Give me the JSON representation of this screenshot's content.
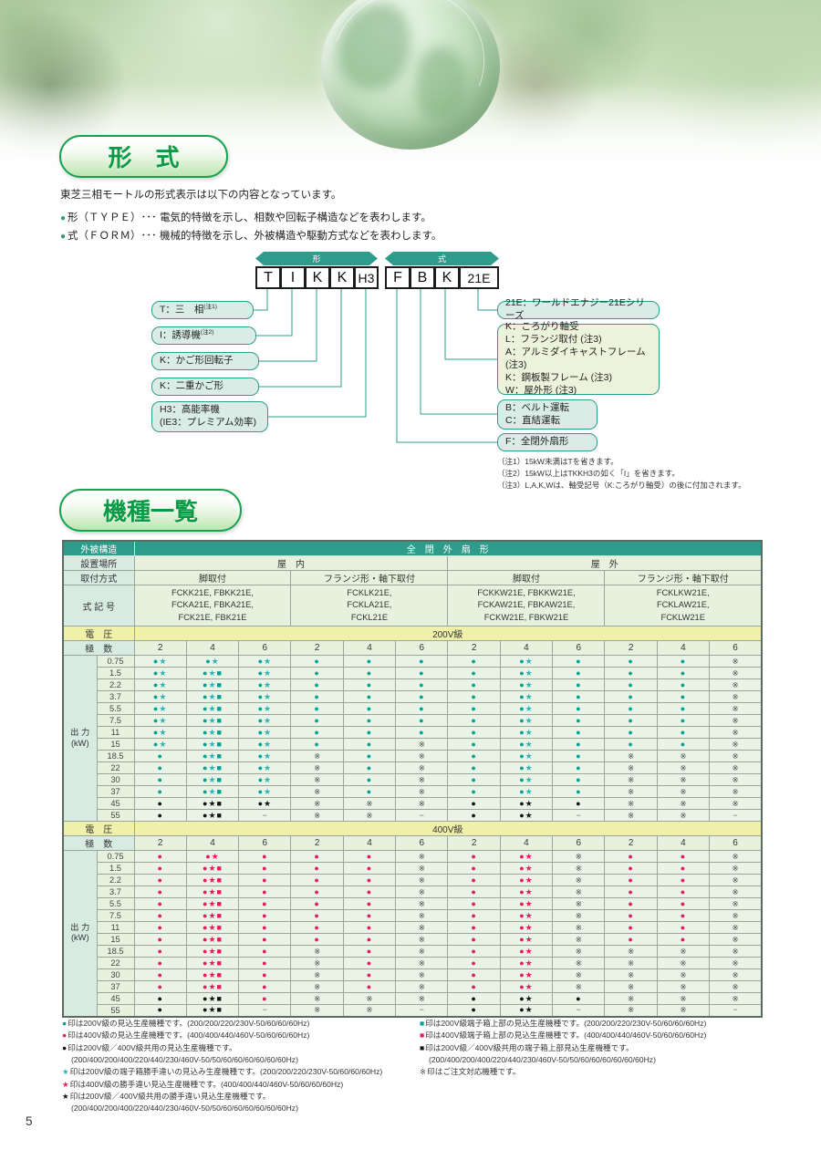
{
  "page": {
    "number": "5"
  },
  "intro": {
    "badge": "形　式",
    "lead": "東芝三相モートルの形式表示は以下の内容となっています。",
    "bullets": [
      "形（ＴＹＰＥ）･･･ 電気的特徴を示し、相数や回転子構造などを表わします。",
      "式（ＦＯＲＭ）･･･ 機械的特徴を示し、外被構造や駆動方式などを表わします。"
    ]
  },
  "section2_badge": "機種一覧",
  "diagram": {
    "arrows": [
      {
        "label": "形"
      },
      {
        "label": "式"
      }
    ],
    "type_boxes": [
      "T",
      "I",
      "K",
      "K",
      "H3"
    ],
    "form_boxes": [
      "F",
      "B",
      "K",
      "21E"
    ],
    "left_callouts": [
      {
        "text": "T：三　相",
        "note": "(注1)"
      },
      {
        "text": "I：誘導機",
        "note": "(注2)"
      },
      {
        "text": "K：かご形回転子",
        "note": ""
      },
      {
        "text": "K：二重かご形",
        "note": ""
      },
      {
        "lines": [
          "H3：高能率機",
          "(IE3：プレミアム効率)"
        ]
      }
    ],
    "right_callouts": [
      {
        "lines": [
          "21E：ワールドエナジー21Eシリーズ"
        ]
      },
      {
        "lines": [
          "K：ころがり軸受",
          "L：フランジ取付 (注3)",
          "A：アルミダイキャストフレーム (注3)",
          "K：鋼板製フレーム (注3)",
          "W：屋外形 (注3)"
        ]
      },
      {
        "lines": [
          "B：ベルト運転",
          "C：直結運転"
        ]
      },
      {
        "lines": [
          "F：全閉外扇形"
        ]
      }
    ],
    "notes": [
      "（注1）15kW未満はTを省きます。",
      "（注2）15kW以上はTKKH3の如く「I」を省きます。",
      "（注3）L,A,K,Wは、軸受記号（K:ころがり軸受）の後に付加されます。"
    ]
  },
  "table": {
    "enclosure_label": "外被構造",
    "enclosure_value": "全　閉　外　扇　形",
    "location_label": "設置場所",
    "locations": [
      "屋　内",
      "屋　外"
    ],
    "mount_label": "取付方式",
    "mounts": [
      "脚取付",
      "フランジ形・軸下取付",
      "脚取付",
      "フランジ形・軸下取付"
    ],
    "code_label": "式 記 号",
    "codes": [
      [
        "FCKK21E, FBKK21E,",
        "FCKA21E, FBKA21E,",
        "FCK21E, FBK21E"
      ],
      [
        "FCKLK21E,",
        "FCKLA21E,",
        "FCKL21E"
      ],
      [
        "FCKKW21E, FBKKW21E,",
        "FCKAW21E, FBKAW21E,",
        "FCKW21E, FBKW21E"
      ],
      [
        "FCKLKW21E,",
        "FCKLAW21E,",
        "FCKLW21E"
      ]
    ],
    "voltage_label": "電　圧",
    "poles_label": "極　数",
    "poles": [
      "2",
      "4",
      "6",
      "2",
      "4",
      "6",
      "2",
      "4",
      "6",
      "2",
      "4",
      "6"
    ],
    "output_label": [
      "出 力",
      "(kW)"
    ],
    "sections": [
      {
        "voltage": "200V級",
        "rows": [
          {
            "kw": "0.75",
            "cells": [
              "tds",
              "tds",
              "tds",
              "td",
              "td",
              "td",
              "td",
              "tds",
              "td",
              "td",
              "td",
              "x"
            ]
          },
          {
            "kw": "1.5",
            "cells": [
              "tds",
              "tdsq",
              "tds",
              "td",
              "td",
              "td",
              "td",
              "tds",
              "td",
              "td",
              "td",
              "x"
            ]
          },
          {
            "kw": "2.2",
            "cells": [
              "tds",
              "tdsq",
              "tds",
              "td",
              "td",
              "td",
              "td",
              "tds",
              "td",
              "td",
              "td",
              "x"
            ]
          },
          {
            "kw": "3.7",
            "cells": [
              "tds",
              "tdsq",
              "tds",
              "td",
              "td",
              "td",
              "td",
              "tds",
              "td",
              "td",
              "td",
              "x"
            ]
          },
          {
            "kw": "5.5",
            "cells": [
              "tds",
              "tdsq",
              "tds",
              "td",
              "td",
              "td",
              "td",
              "tds",
              "td",
              "td",
              "td",
              "x"
            ]
          },
          {
            "kw": "7.5",
            "cells": [
              "tds",
              "tdsq",
              "tds",
              "td",
              "td",
              "td",
              "td",
              "tds",
              "td",
              "td",
              "td",
              "x"
            ]
          },
          {
            "kw": "11",
            "cells": [
              "tds",
              "tdsq",
              "tds",
              "td",
              "td",
              "td",
              "td",
              "tds",
              "td",
              "td",
              "td",
              "x"
            ]
          },
          {
            "kw": "15",
            "cells": [
              "tds",
              "tdsq",
              "tds",
              "td",
              "td",
              "x",
              "td",
              "tds",
              "td",
              "td",
              "td",
              "x"
            ]
          },
          {
            "kw": "18.5",
            "cells": [
              "td",
              "tdsq",
              "tds",
              "x",
              "td",
              "x",
              "td",
              "tds",
              "td",
              "x",
              "x",
              "x"
            ]
          },
          {
            "kw": "22",
            "cells": [
              "td",
              "tdsq",
              "tds",
              "x",
              "td",
              "x",
              "td",
              "tds",
              "td",
              "x",
              "x",
              "x"
            ]
          },
          {
            "kw": "30",
            "cells": [
              "td",
              "tdsq",
              "tds",
              "x",
              "td",
              "x",
              "td",
              "tds",
              "td",
              "x",
              "x",
              "x"
            ]
          },
          {
            "kw": "37",
            "cells": [
              "td",
              "tdsq",
              "tds",
              "x",
              "td",
              "x",
              "td",
              "tds",
              "td",
              "x",
              "x",
              "x"
            ]
          },
          {
            "kw": "45",
            "cells": [
              "kd",
              "kdsq",
              "kds",
              "x",
              "x",
              "x",
              "kd",
              "kds",
              "kd",
              "x",
              "x",
              "x"
            ]
          },
          {
            "kw": "55",
            "cells": [
              "kd",
              "kdsq",
              "dash",
              "x",
              "x",
              "dash",
              "kd",
              "kds",
              "dash",
              "x",
              "x",
              "dash"
            ]
          }
        ]
      },
      {
        "voltage": "400V級",
        "rows": [
          {
            "kw": "0.75",
            "cells": [
              "pd",
              "pds",
              "pd",
              "pd",
              "pd",
              "x",
              "pd",
              "pds",
              "x",
              "pd",
              "pd",
              "x"
            ]
          },
          {
            "kw": "1.5",
            "cells": [
              "pd",
              "pdsq",
              "pd",
              "pd",
              "pd",
              "x",
              "pd",
              "pds",
              "x",
              "pd",
              "pd",
              "x"
            ]
          },
          {
            "kw": "2.2",
            "cells": [
              "pd",
              "pdsq",
              "pd",
              "pd",
              "pd",
              "x",
              "pd",
              "pds",
              "x",
              "pd",
              "pd",
              "x"
            ]
          },
          {
            "kw": "3.7",
            "cells": [
              "pd",
              "pdsq",
              "pd",
              "pd",
              "pd",
              "x",
              "pd",
              "pds",
              "x",
              "pd",
              "pd",
              "x"
            ]
          },
          {
            "kw": "5.5",
            "cells": [
              "pd",
              "pdsq",
              "pd",
              "pd",
              "pd",
              "x",
              "pd",
              "pds",
              "x",
              "pd",
              "pd",
              "x"
            ]
          },
          {
            "kw": "7.5",
            "cells": [
              "pd",
              "pdsq",
              "pd",
              "pd",
              "pd",
              "x",
              "pd",
              "pds",
              "x",
              "pd",
              "pd",
              "x"
            ]
          },
          {
            "kw": "11",
            "cells": [
              "pd",
              "pdsq",
              "pd",
              "pd",
              "pd",
              "x",
              "pd",
              "pds",
              "x",
              "pd",
              "pd",
              "x"
            ]
          },
          {
            "kw": "15",
            "cells": [
              "pd",
              "pdsq",
              "pd",
              "pd",
              "pd",
              "x",
              "pd",
              "pds",
              "x",
              "pd",
              "pd",
              "x"
            ]
          },
          {
            "kw": "18.5",
            "cells": [
              "pd",
              "pdsq",
              "pd",
              "x",
              "pd",
              "x",
              "pd",
              "pds",
              "x",
              "x",
              "x",
              "x"
            ]
          },
          {
            "kw": "22",
            "cells": [
              "pd",
              "pdsq",
              "pd",
              "x",
              "pd",
              "x",
              "pd",
              "pds",
              "x",
              "x",
              "x",
              "x"
            ]
          },
          {
            "kw": "30",
            "cells": [
              "pd",
              "pdsq",
              "pd",
              "x",
              "pd",
              "x",
              "pd",
              "pds",
              "x",
              "x",
              "x",
              "x"
            ]
          },
          {
            "kw": "37",
            "cells": [
              "pd",
              "pdsq",
              "pd",
              "x",
              "pd",
              "x",
              "pd",
              "pds",
              "x",
              "x",
              "x",
              "x"
            ]
          },
          {
            "kw": "45",
            "cells": [
              "kd",
              "kdsq",
              "pd",
              "x",
              "x",
              "x",
              "kd",
              "kds",
              "kd",
              "x",
              "x",
              "x"
            ]
          },
          {
            "kw": "55",
            "cells": [
              "kd",
              "kdsq",
              "dash",
              "x",
              "x",
              "dash",
              "kd",
              "kds",
              "dash",
              "x",
              "x",
              "dash"
            ]
          }
        ]
      }
    ]
  },
  "legend": {
    "left": [
      {
        "mark": "td",
        "text": "印は200V級の見込生産機種です。(200/200/220/230V-50/60/60/60Hz)"
      },
      {
        "mark": "pd",
        "text": "印は400V級の見込生産機種です。(400/400/440/460V-50/60/60/60Hz)"
      },
      {
        "mark": "kd",
        "text": "印は200V級／400V級共用の見込生産機種です。"
      },
      {
        "mark": null,
        "text": "(200/400/200/400/220/440/230/460V-50/50/60/60/60/60/60/60Hz)"
      },
      {
        "mark": "ts",
        "text": "印は200V級の端子箱勝手違いの見込み生産機種です。(200/200/220/230V-50/60/60/60Hz)"
      },
      {
        "mark": "ps",
        "text": "印は400V級の勝手違い見込生産機種です。(400/400/440/460V-50/60/60/60Hz)"
      },
      {
        "mark": "ks",
        "text": "印は200V級／400V級共用の勝手違い見込生産機種です。"
      },
      {
        "mark": null,
        "text": "(200/400/200/400/220/440/230/460V-50/50/60/60/60/60/60/60Hz)"
      }
    ],
    "right": [
      {
        "mark": "tq",
        "text": "印は200V級端子箱上部の見込生産機種です。(200/200/220/230V-50/60/60/60Hz)"
      },
      {
        "mark": "pq",
        "text": "印は400V級端子箱上部の見込生産機種です。(400/400/440/460V-50/60/60/60Hz)"
      },
      {
        "mark": "kq",
        "text": "印は200V級／400V級共用の端子箱上部見込生産機種です。"
      },
      {
        "mark": null,
        "text": "(200/400/200/400/220/440/230/460V-50/50/60/60/60/60/60/60Hz)"
      },
      {
        "mark": "x",
        "text": "印はご注文対応機種です。"
      }
    ]
  }
}
